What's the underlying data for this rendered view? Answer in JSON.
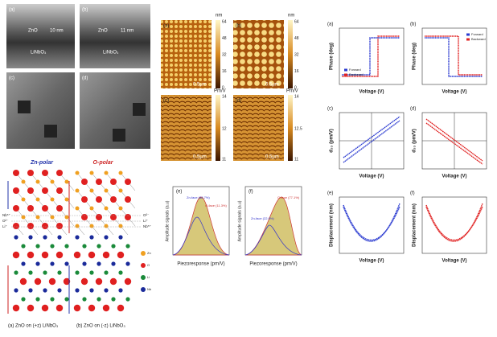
{
  "tem": {
    "panels": [
      "(a)",
      "(b)",
      "(c)",
      "(d)"
    ],
    "film": "ZnO",
    "substrate": "LiNbO₃",
    "scales": [
      "10 nm",
      "11 nm"
    ]
  },
  "crystal": {
    "zn_polar": "Zn-polar",
    "o_polar": "O-polar",
    "left_layers": [
      "Nb⁵⁺",
      "O²⁻",
      "Li⁺"
    ],
    "right_layers": [
      "O²⁻",
      "Li⁺",
      "Nb⁵⁺"
    ],
    "legend": [
      "Zn",
      "O",
      "Li",
      "Nb"
    ],
    "captions": [
      "(a) ZnO on (+z) LiNbO₃",
      "(b) ZnO on (-z) LiNbO₃"
    ]
  },
  "afm": {
    "panels": [
      "(a)",
      "(b)",
      "(c)",
      "(d)"
    ],
    "height_unit": "nm",
    "height_ticks": [
      "64",
      "48",
      "32",
      "16",
      "0"
    ],
    "piezo_unit": "Pm/V",
    "piezo_ticks_left": [
      "14",
      "12",
      "11"
    ],
    "piezo_ticks_right": [
      "14",
      "12.5",
      "11"
    ],
    "scale": "0.5μm"
  },
  "histograms": {
    "panels": [
      "(e)",
      "(f)"
    ],
    "y_label": "Amplitude signals (a.u)",
    "x_label": "Piezoresponse (pm/V)",
    "e_notes": [
      "Zn-face (88.7%)",
      "O-face (11.3%)"
    ],
    "f_notes": [
      "Zn-face (22.9%)",
      "O-face (77.1%)"
    ]
  },
  "loops": {
    "panels": [
      "(a)",
      "(b)",
      "(c)",
      "(d)",
      "(e)",
      "(f)"
    ],
    "phase_label": "Phase (deg)",
    "d33_label": "d₃₃ (pm/V)",
    "disp_label": "Displacement (nm)",
    "x_label": "Voltage (V)",
    "legend": [
      "Forward",
      "Backward"
    ]
  }
}
